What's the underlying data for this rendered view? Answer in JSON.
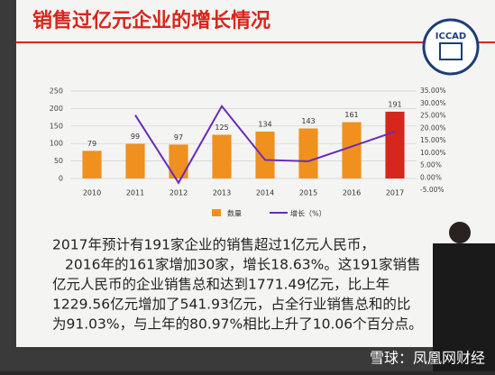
{
  "slide": {
    "title": "销售过亿元企业的增长情况",
    "logo": "ICCAD",
    "paragraph": [
      "2017年预计有191家企业的销售超过1亿元人民币，",
      "2016年的161家增加30家，增长18.63%。这191家销售",
      "亿元人民币的企业销售总和达到1771.49亿元，比上年",
      "1229.56亿元增加了541.93亿元，占全行业销售总和的比",
      "为91.03%，与上年的80.97%相比上升了10.06个百分点。"
    ],
    "watermark": "雪球：凤凰网财经"
  },
  "chart_data": {
    "type": "bar",
    "categories": [
      "2010",
      "2011",
      "2012",
      "2013",
      "2014",
      "2015",
      "2016",
      "2017"
    ],
    "series": [
      {
        "name": "数量",
        "type": "bar",
        "color": "#f0901e",
        "colors": [
          "#f0901e",
          "#f0901e",
          "#f0901e",
          "#f0901e",
          "#f0901e",
          "#f0901e",
          "#f0901e",
          "#d7261c"
        ],
        "values": [
          79,
          99,
          97,
          125,
          134,
          143,
          161,
          191
        ]
      },
      {
        "name": "增长（%）",
        "type": "line",
        "axis": "y2",
        "color": "#6a2bb8",
        "values": [
          null,
          25.3,
          -2.0,
          28.9,
          7.2,
          6.7,
          12.6,
          18.63
        ]
      }
    ],
    "ylim": [
      0,
      250
    ],
    "yticks": [
      0,
      50,
      100,
      150,
      200,
      250
    ],
    "y2lim": [
      -5,
      35
    ],
    "y2ticks": [
      {
        "value": -5,
        "label": "-5.00%"
      },
      {
        "value": 0,
        "label": "0.00%"
      },
      {
        "value": 5,
        "label": "5.00%"
      },
      {
        "value": 10,
        "label": "10.00%"
      },
      {
        "value": 15,
        "label": "15.00%"
      },
      {
        "value": 20,
        "label": "20.00%"
      },
      {
        "value": 25,
        "label": "25.00%"
      },
      {
        "value": 30,
        "label": "30.00%"
      },
      {
        "value": 35,
        "label": "35.00%"
      }
    ],
    "grid": true,
    "legend": "bottom"
  }
}
